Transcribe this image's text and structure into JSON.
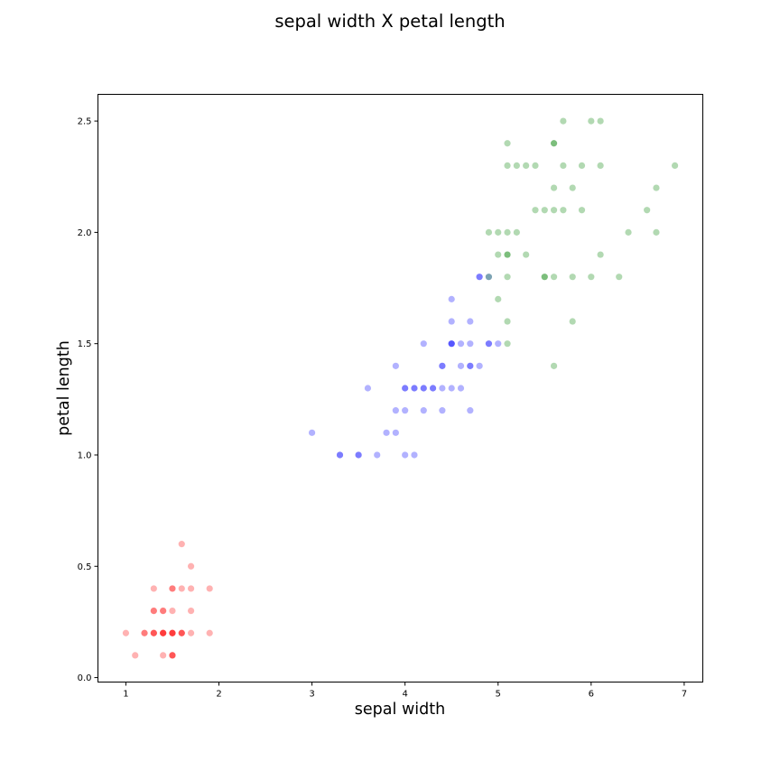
{
  "chart_data": {
    "type": "scatter",
    "title": "sepal width X petal length",
    "xlabel": "sepal width",
    "ylabel": "petal length",
    "xlim": [
      0.7,
      7.2
    ],
    "ylim": [
      -0.02,
      2.62
    ],
    "xticks": [
      1,
      2,
      3,
      4,
      5,
      6,
      7
    ],
    "yticks": [
      0.0,
      0.5,
      1.0,
      1.5,
      2.0,
      2.5
    ],
    "grid": false,
    "marker_alpha": 0.3,
    "series": [
      {
        "color": "#ff0000",
        "points": [
          [
            1.6,
            0.6
          ],
          [
            1.7,
            0.5
          ],
          [
            1.3,
            0.4
          ],
          [
            1.5,
            0.4
          ],
          [
            1.5,
            0.4
          ],
          [
            1.6,
            0.4
          ],
          [
            1.7,
            0.4
          ],
          [
            1.9,
            0.4
          ],
          [
            1.3,
            0.3
          ],
          [
            1.3,
            0.3
          ],
          [
            1.4,
            0.3
          ],
          [
            1.4,
            0.3
          ],
          [
            1.5,
            0.3
          ],
          [
            1.7,
            0.3
          ],
          [
            1.0,
            0.2
          ],
          [
            1.2,
            0.2
          ],
          [
            1.2,
            0.2
          ],
          [
            1.3,
            0.2
          ],
          [
            1.3,
            0.2
          ],
          [
            1.3,
            0.2
          ],
          [
            1.4,
            0.2
          ],
          [
            1.4,
            0.2
          ],
          [
            1.4,
            0.2
          ],
          [
            1.4,
            0.2
          ],
          [
            1.5,
            0.2
          ],
          [
            1.5,
            0.2
          ],
          [
            1.5,
            0.2
          ],
          [
            1.5,
            0.2
          ],
          [
            1.6,
            0.2
          ],
          [
            1.6,
            0.2
          ],
          [
            1.6,
            0.2
          ],
          [
            1.7,
            0.2
          ],
          [
            1.9,
            0.2
          ],
          [
            1.1,
            0.1
          ],
          [
            1.4,
            0.1
          ],
          [
            1.5,
            0.1
          ],
          [
            1.5,
            0.1
          ],
          [
            1.5,
            0.1
          ]
        ]
      },
      {
        "color": "#0000ff",
        "points": [
          [
            4.8,
            1.8
          ],
          [
            4.8,
            1.8
          ],
          [
            4.9,
            1.8
          ],
          [
            4.5,
            1.7
          ],
          [
            4.5,
            1.6
          ],
          [
            4.7,
            1.6
          ],
          [
            4.2,
            1.5
          ],
          [
            4.5,
            1.5
          ],
          [
            4.5,
            1.5
          ],
          [
            4.5,
            1.5
          ],
          [
            4.6,
            1.5
          ],
          [
            4.7,
            1.5
          ],
          [
            4.9,
            1.5
          ],
          [
            4.9,
            1.5
          ],
          [
            5.0,
            1.5
          ],
          [
            3.9,
            1.4
          ],
          [
            4.4,
            1.4
          ],
          [
            4.4,
            1.4
          ],
          [
            4.6,
            1.4
          ],
          [
            4.7,
            1.4
          ],
          [
            4.7,
            1.4
          ],
          [
            4.8,
            1.4
          ],
          [
            3.6,
            1.3
          ],
          [
            4.0,
            1.3
          ],
          [
            4.0,
            1.3
          ],
          [
            4.1,
            1.3
          ],
          [
            4.1,
            1.3
          ],
          [
            4.2,
            1.3
          ],
          [
            4.2,
            1.3
          ],
          [
            4.3,
            1.3
          ],
          [
            4.3,
            1.3
          ],
          [
            4.4,
            1.3
          ],
          [
            4.5,
            1.3
          ],
          [
            4.6,
            1.3
          ],
          [
            3.9,
            1.2
          ],
          [
            4.0,
            1.2
          ],
          [
            4.2,
            1.2
          ],
          [
            4.4,
            1.2
          ],
          [
            4.7,
            1.2
          ],
          [
            3.0,
            1.1
          ],
          [
            3.8,
            1.1
          ],
          [
            3.9,
            1.1
          ],
          [
            3.3,
            1.0
          ],
          [
            3.3,
            1.0
          ],
          [
            3.5,
            1.0
          ],
          [
            3.5,
            1.0
          ],
          [
            3.7,
            1.0
          ],
          [
            4.0,
            1.0
          ],
          [
            4.1,
            1.0
          ]
        ]
      },
      {
        "color": "#008000",
        "points": [
          [
            5.7,
            2.5
          ],
          [
            6.0,
            2.5
          ],
          [
            6.1,
            2.5
          ],
          [
            5.1,
            2.4
          ],
          [
            5.6,
            2.4
          ],
          [
            5.6,
            2.4
          ],
          [
            5.1,
            2.3
          ],
          [
            5.2,
            2.3
          ],
          [
            5.3,
            2.3
          ],
          [
            5.4,
            2.3
          ],
          [
            5.7,
            2.3
          ],
          [
            5.9,
            2.3
          ],
          [
            6.1,
            2.3
          ],
          [
            6.9,
            2.3
          ],
          [
            5.6,
            2.2
          ],
          [
            5.8,
            2.2
          ],
          [
            6.7,
            2.2
          ],
          [
            5.4,
            2.1
          ],
          [
            5.5,
            2.1
          ],
          [
            5.6,
            2.1
          ],
          [
            5.7,
            2.1
          ],
          [
            5.9,
            2.1
          ],
          [
            6.6,
            2.1
          ],
          [
            4.9,
            2.0
          ],
          [
            5.0,
            2.0
          ],
          [
            5.1,
            2.0
          ],
          [
            5.2,
            2.0
          ],
          [
            6.4,
            2.0
          ],
          [
            6.7,
            2.0
          ],
          [
            5.0,
            1.9
          ],
          [
            5.1,
            1.9
          ],
          [
            5.1,
            1.9
          ],
          [
            5.3,
            1.9
          ],
          [
            6.1,
            1.9
          ],
          [
            4.9,
            1.8
          ],
          [
            5.1,
            1.8
          ],
          [
            5.5,
            1.8
          ],
          [
            5.5,
            1.8
          ],
          [
            5.6,
            1.8
          ],
          [
            5.8,
            1.8
          ],
          [
            6.0,
            1.8
          ],
          [
            6.3,
            1.8
          ],
          [
            5.0,
            1.7
          ],
          [
            5.1,
            1.6
          ],
          [
            5.8,
            1.6
          ],
          [
            5.1,
            1.5
          ],
          [
            5.6,
            1.4
          ]
        ]
      }
    ]
  }
}
